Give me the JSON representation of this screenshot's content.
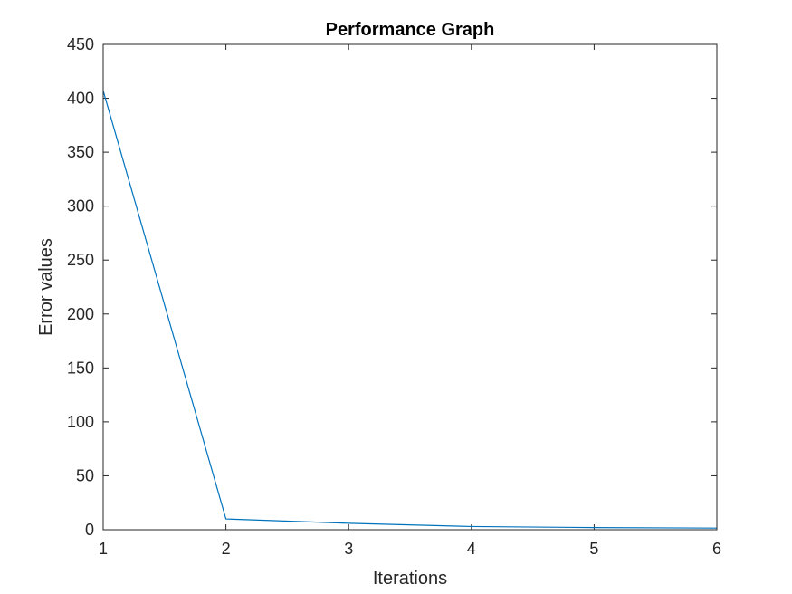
{
  "chart_data": {
    "type": "line",
    "title": "Performance Graph",
    "xlabel": "Iterations",
    "ylabel": "Error values",
    "xlim": [
      1,
      6
    ],
    "ylim": [
      0,
      450
    ],
    "xticks": [
      1,
      2,
      3,
      4,
      5,
      6
    ],
    "yticks": [
      0,
      50,
      100,
      150,
      200,
      250,
      300,
      350,
      400,
      450
    ],
    "grid": false,
    "series": [
      {
        "color": "#0072BD",
        "x": [
          1,
          2,
          3,
          4,
          5,
          6
        ],
        "y": [
          407,
          10,
          6,
          3,
          2,
          1.5
        ]
      }
    ]
  }
}
